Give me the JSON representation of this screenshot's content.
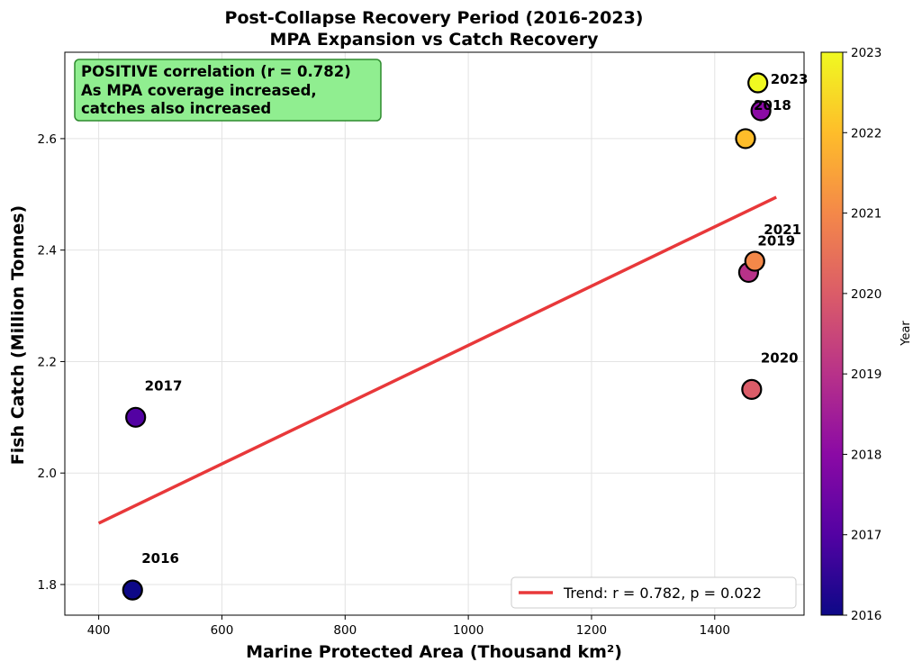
{
  "chart_data": {
    "type": "scatter",
    "title": "Post-Collapse Recovery Period (2016-2023)",
    "subtitle": "MPA Expansion vs Catch Recovery",
    "xlabel": "Marine Protected Area (Thousand km²)",
    "ylabel": "Fish Catch (Million Tonnes)",
    "xlim": [
      345,
      1545
    ],
    "ylim": [
      1.745,
      2.755
    ],
    "x_ticks": [
      400,
      600,
      800,
      1000,
      1200,
      1400
    ],
    "y_ticks": [
      1.8,
      2.0,
      2.2,
      2.4,
      2.6
    ],
    "x_tick_labels": [
      "400",
      "600",
      "800",
      "1000",
      "1200",
      "1400"
    ],
    "y_tick_labels": [
      "1.8",
      "2.0",
      "2.2",
      "2.4",
      "2.6"
    ],
    "grid": true,
    "points": [
      {
        "year": 2016,
        "x": 455,
        "y": 1.79,
        "label": "2016",
        "color": "#0d0887"
      },
      {
        "year": 2017,
        "x": 460,
        "y": 2.1,
        "label": "2017",
        "color": "#5302a3"
      },
      {
        "year": 2018,
        "x": 1475,
        "y": 2.65,
        "label": "2018",
        "color": "#8b0aa5"
      },
      {
        "year": 2019,
        "x": 1455,
        "y": 2.36,
        "label": "2019",
        "color": "#b83289"
      },
      {
        "year": 2020,
        "x": 1460,
        "y": 2.15,
        "label": "2020",
        "color": "#db5c68"
      },
      {
        "year": 2021,
        "x": 1465,
        "y": 2.38,
        "label": "2021",
        "color": "#f48849"
      },
      {
        "year": 2022,
        "x": 1450,
        "y": 2.6,
        "label": "",
        "color": "#febd2a"
      },
      {
        "year": 2023,
        "x": 1470,
        "y": 2.7,
        "label": "2023",
        "color": "#f0f921"
      }
    ],
    "trend_line": {
      "x": [
        400,
        1500
      ],
      "y": [
        1.91,
        2.495
      ],
      "color": "#e8383a"
    },
    "legend": {
      "position": "lower-right",
      "entries": [
        "Trend: r = 0.782, p = 0.022"
      ]
    },
    "annotation": {
      "lines": [
        "POSITIVE correlation (r = 0.782)",
        "As MPA coverage increased,",
        "catches also increased"
      ],
      "background": "#90ee90",
      "border": "#2e8b2e"
    },
    "colorbar": {
      "label": "Year",
      "range": [
        2016,
        2023
      ],
      "ticks": [
        "2016",
        "2017",
        "2018",
        "2019",
        "2020",
        "2021",
        "2022",
        "2023"
      ],
      "colormap": "plasma"
    }
  }
}
